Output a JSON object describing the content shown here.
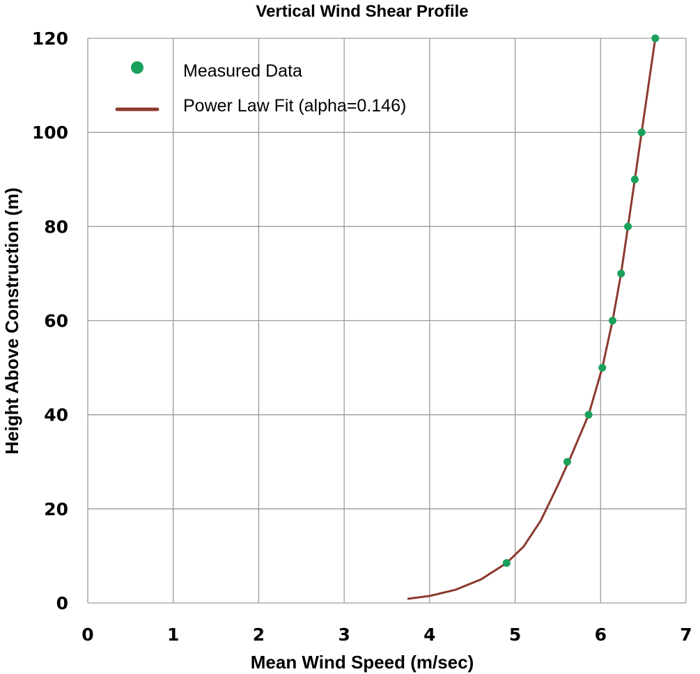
{
  "chart_data": {
    "type": "scatter",
    "title": "Vertical Wind Shear Profile",
    "xlabel": "Mean Wind Speed (m/sec)",
    "ylabel": "Height Above Construction (m)",
    "xlim": [
      0,
      7
    ],
    "ylim": [
      0,
      120
    ],
    "xticks": [
      0,
      1,
      2,
      3,
      4,
      5,
      6,
      7
    ],
    "yticks": [
      0,
      20,
      40,
      60,
      80,
      100,
      120
    ],
    "grid": true,
    "legend": {
      "position": "top-left"
    },
    "series": [
      {
        "name": "Measured Data",
        "type": "scatter",
        "color": "#19a05a",
        "points": [
          {
            "x": 4.9,
            "y": 8.5
          },
          {
            "x": 5.61,
            "y": 30
          },
          {
            "x": 5.86,
            "y": 40
          },
          {
            "x": 6.02,
            "y": 50
          },
          {
            "x": 6.14,
            "y": 60
          },
          {
            "x": 6.24,
            "y": 70
          },
          {
            "x": 6.32,
            "y": 80
          },
          {
            "x": 6.4,
            "y": 90
          },
          {
            "x": 6.48,
            "y": 100
          },
          {
            "x": 6.64,
            "y": 120
          }
        ]
      },
      {
        "name": "Power Law Fit (alpha=0.146)",
        "type": "line",
        "color": "#8b3a2e",
        "alpha": 0.146,
        "points": [
          {
            "x": 3.75,
            "y": 0.9
          },
          {
            "x": 4.0,
            "y": 1.5
          },
          {
            "x": 4.3,
            "y": 2.8
          },
          {
            "x": 4.6,
            "y": 5.0
          },
          {
            "x": 4.9,
            "y": 8.5
          },
          {
            "x": 5.1,
            "y": 12
          },
          {
            "x": 5.3,
            "y": 17.5
          },
          {
            "x": 5.5,
            "y": 25
          },
          {
            "x": 5.65,
            "y": 31
          },
          {
            "x": 5.86,
            "y": 40
          },
          {
            "x": 6.02,
            "y": 50
          },
          {
            "x": 6.14,
            "y": 60
          },
          {
            "x": 6.24,
            "y": 70
          },
          {
            "x": 6.32,
            "y": 80
          },
          {
            "x": 6.4,
            "y": 90
          },
          {
            "x": 6.48,
            "y": 100
          },
          {
            "x": 6.56,
            "y": 110
          },
          {
            "x": 6.64,
            "y": 120
          }
        ]
      }
    ]
  }
}
